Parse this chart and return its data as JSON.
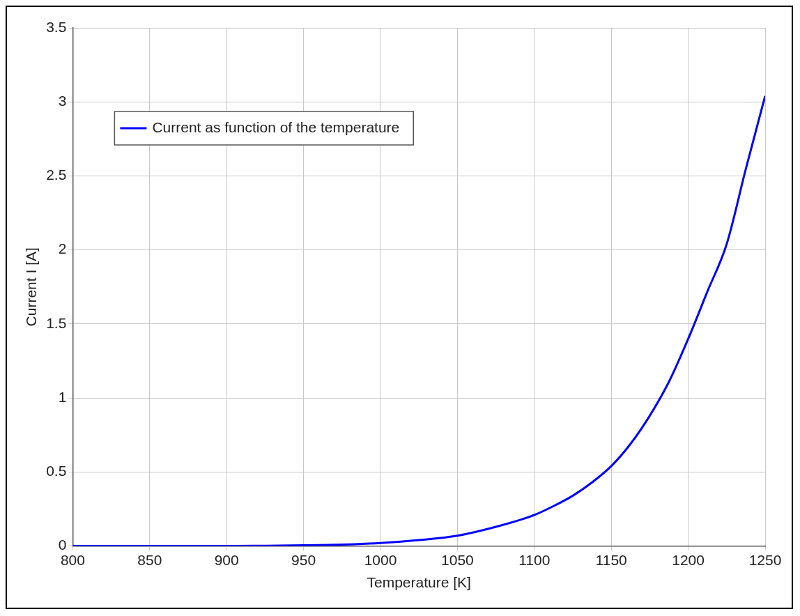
{
  "chart_data": {
    "type": "line",
    "xlabel": "Temperature [K]",
    "ylabel": "Current I [A]",
    "x": [
      800,
      850,
      900,
      925,
      950,
      975,
      1000,
      1025,
      1050,
      1075,
      1100,
      1112.5,
      1125,
      1137.5,
      1150,
      1162.5,
      1175,
      1187.5,
      1200,
      1212.5,
      1225,
      1237.5,
      1250
    ],
    "series": [
      {
        "name": "Current as function of the temperature",
        "color": "#0000ff",
        "values": [
          0,
          0,
          0,
          0.002,
          0.005,
          0.01,
          0.02,
          0.04,
          0.07,
          0.13,
          0.21,
          0.27,
          0.34,
          0.43,
          0.54,
          0.69,
          0.88,
          1.11,
          1.4,
          1.72,
          2.04,
          2.55,
          3.04
        ]
      }
    ],
    "xlim": [
      800,
      1250
    ],
    "xticks": [
      800,
      850,
      900,
      950,
      1000,
      1050,
      1100,
      1150,
      1200,
      1250
    ],
    "ylim": [
      0,
      3.5
    ],
    "yticks": [
      0,
      0.5,
      1,
      1.5,
      2,
      2.5,
      3,
      3.5
    ],
    "grid": true,
    "legend": "top left",
    "marker": "none",
    "line_style": "solid"
  }
}
